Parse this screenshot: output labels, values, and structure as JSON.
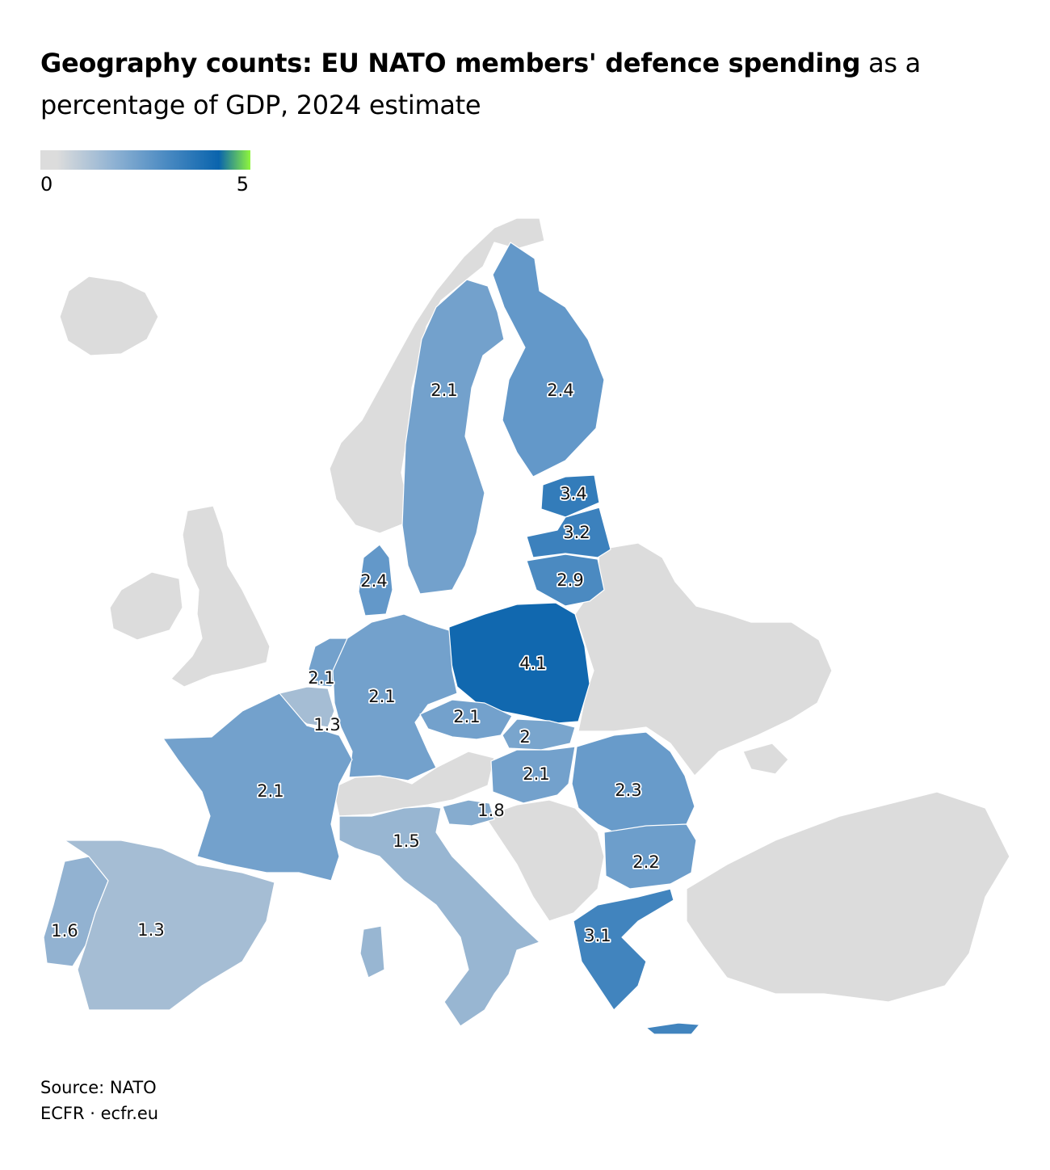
{
  "title": {
    "bold": "Geography counts: EU NATO members' defence spending",
    "rest": " as a percentage of GDP, 2024 estimate"
  },
  "legend": {
    "min": "0",
    "max": "5"
  },
  "colors": {
    "no_data": "#dcdcdc",
    "scale_low": "#dcdcdc",
    "scale_mid": "#6a9ccb",
    "scale_high": "#0a64ad",
    "scale_top": "#8ef53d"
  },
  "map": {
    "scale": [
      0,
      5
    ],
    "countries": [
      {
        "name": "Sweden",
        "value": 2.1
      },
      {
        "name": "Finland",
        "value": 2.4
      },
      {
        "name": "Estonia",
        "value": 3.4
      },
      {
        "name": "Latvia",
        "value": 3.2
      },
      {
        "name": "Lithuania",
        "value": 2.9
      },
      {
        "name": "Denmark",
        "value": 2.4
      },
      {
        "name": "Poland",
        "value": 4.1
      },
      {
        "name": "Netherlands",
        "value": 2.1
      },
      {
        "name": "Belgium",
        "value": 1.3
      },
      {
        "name": "Germany",
        "value": 2.1
      },
      {
        "name": "Czechia",
        "value": 2.1
      },
      {
        "name": "Slovakia",
        "value": 2
      },
      {
        "name": "Hungary",
        "value": 2.1
      },
      {
        "name": "Romania",
        "value": 2.3
      },
      {
        "name": "France",
        "value": 2.1
      },
      {
        "name": "Slovenia",
        "value": 1.8
      },
      {
        "name": "Italy",
        "value": 1.5
      },
      {
        "name": "Bulgaria",
        "value": 2.2
      },
      {
        "name": "Greece",
        "value": 3.1
      },
      {
        "name": "Portugal",
        "value": 1.6
      },
      {
        "name": "Spain",
        "value": 1.3
      }
    ]
  },
  "labels": {
    "sweden": "2.1",
    "finland": "2.4",
    "estonia": "3.4",
    "latvia": "3.2",
    "lithuania": "2.9",
    "denmark": "2.4",
    "poland": "4.1",
    "netherlands": "2.1",
    "belgium": "1.3",
    "germany": "2.1",
    "czechia": "2.1",
    "slovakia": "2",
    "hungary": "2.1",
    "romania": "2.3",
    "france": "2.1",
    "slovenia": "1.8",
    "italy": "1.5",
    "bulgaria": "2.2",
    "greece": "3.1",
    "portugal": "1.6",
    "spain": "1.3"
  },
  "source": {
    "line1": "Source: NATO",
    "line2": "ECFR · ecfr.eu"
  }
}
